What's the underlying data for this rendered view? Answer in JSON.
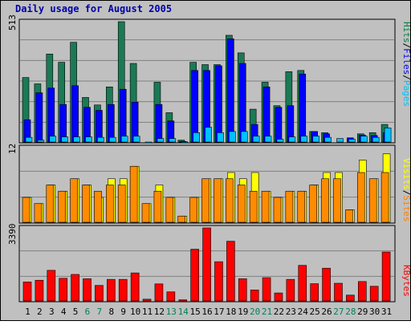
{
  "chart_data": [
    {
      "type": "bar",
      "title": "Daily usage for August 2005",
      "panel": "pages-files-hits",
      "y_max_label": "513",
      "ylim": [
        0,
        513
      ],
      "categories": [
        "1",
        "2",
        "3",
        "4",
        "5",
        "6",
        "7",
        "8",
        "9",
        "10",
        "11",
        "12",
        "13",
        "14",
        "15",
        "16",
        "17",
        "18",
        "19",
        "20",
        "21",
        "22",
        "23",
        "24",
        "25",
        "26",
        "27",
        "28",
        "29",
        "30",
        "31"
      ],
      "weekend_days": [
        "6",
        "7",
        "13",
        "14",
        "20",
        "21",
        "27",
        "28"
      ],
      "legend": [
        {
          "name": "Pages",
          "color": "#00c0ff"
        },
        {
          "name": "/",
          "color": "#000000"
        },
        {
          "name": "Files",
          "color": "#0000ff"
        },
        {
          "name": "/",
          "color": "#000000"
        },
        {
          "name": "Hits",
          "color": "#008040"
        }
      ],
      "series": [
        {
          "name": "Hits",
          "color": "#1a7a55",
          "values": [
            275,
            248,
            375,
            340,
            425,
            190,
            158,
            235,
            513,
            335,
            0,
            255,
            125,
            8,
            340,
            330,
            330,
            455,
            380,
            140,
            255,
            155,
            300,
            305,
            45,
            40,
            0,
            0,
            35,
            40,
            75
          ]
        },
        {
          "name": "Files",
          "color": "#0000ff",
          "values": [
            95,
            210,
            230,
            160,
            240,
            148,
            135,
            160,
            225,
            170,
            0,
            160,
            90,
            3,
            305,
            305,
            325,
            440,
            335,
            75,
            235,
            148,
            155,
            290,
            45,
            35,
            0,
            18,
            30,
            28,
            40
          ]
        },
        {
          "name": "Pages",
          "color": "#00c0ff",
          "values": [
            20,
            8,
            25,
            22,
            22,
            22,
            20,
            20,
            25,
            25,
            0,
            15,
            15,
            1,
            40,
            63,
            40,
            45,
            45,
            25,
            25,
            12,
            22,
            25,
            25,
            20,
            15,
            12,
            25,
            20,
            60
          ]
        }
      ]
    },
    {
      "type": "bar",
      "panel": "sites-visits",
      "y_max_label": "12",
      "ylim": [
        0,
        12
      ],
      "categories": [
        "1",
        "2",
        "3",
        "4",
        "5",
        "6",
        "7",
        "8",
        "9",
        "10",
        "11",
        "12",
        "13",
        "14",
        "15",
        "16",
        "17",
        "18",
        "19",
        "20",
        "21",
        "22",
        "23",
        "24",
        "25",
        "26",
        "27",
        "28",
        "29",
        "30",
        "31"
      ],
      "legend": [
        {
          "name": "Sites",
          "color": "#ff8000"
        },
        {
          "name": "/",
          "color": "#000000"
        },
        {
          "name": "Visits",
          "color": "#ffff00"
        }
      ],
      "series": [
        {
          "name": "Visits",
          "color": "#ffff00",
          "values": [
            4,
            3,
            6,
            5,
            7,
            6,
            4,
            7,
            7,
            9,
            3,
            6,
            4,
            1,
            4,
            7,
            7,
            8,
            7,
            8,
            5,
            4,
            5,
            5,
            6,
            8,
            8,
            2,
            10,
            7,
            11
          ]
        },
        {
          "name": "Sites",
          "color": "#ff8c00",
          "values": [
            4,
            3,
            6,
            5,
            7,
            6,
            5,
            6,
            6,
            9,
            3,
            5,
            4,
            1,
            4,
            7,
            7,
            7,
            6,
            5,
            5,
            4,
            5,
            5,
            6,
            7,
            7,
            2,
            8,
            7,
            8
          ]
        }
      ]
    },
    {
      "type": "bar",
      "panel": "kbytes",
      "y_max_label": "3390",
      "ylim": [
        0,
        3390
      ],
      "categories": [
        "1",
        "2",
        "3",
        "4",
        "5",
        "6",
        "7",
        "8",
        "9",
        "10",
        "11",
        "12",
        "13",
        "14",
        "15",
        "16",
        "17",
        "18",
        "19",
        "20",
        "21",
        "22",
        "23",
        "24",
        "25",
        "26",
        "27",
        "28",
        "29",
        "30",
        "31"
      ],
      "legend": [
        {
          "name": "KBytes",
          "color": "#ff0000"
        }
      ],
      "series": [
        {
          "name": "KBytes",
          "color": "#ff0000",
          "values": [
            880,
            960,
            1420,
            1050,
            1230,
            1030,
            720,
            1000,
            1000,
            1300,
            80,
            790,
            420,
            50,
            2400,
            3390,
            1820,
            2770,
            1030,
            510,
            1080,
            370,
            1000,
            1650,
            800,
            1520,
            820,
            270,
            900,
            680,
            2270
          ]
        }
      ]
    }
  ]
}
